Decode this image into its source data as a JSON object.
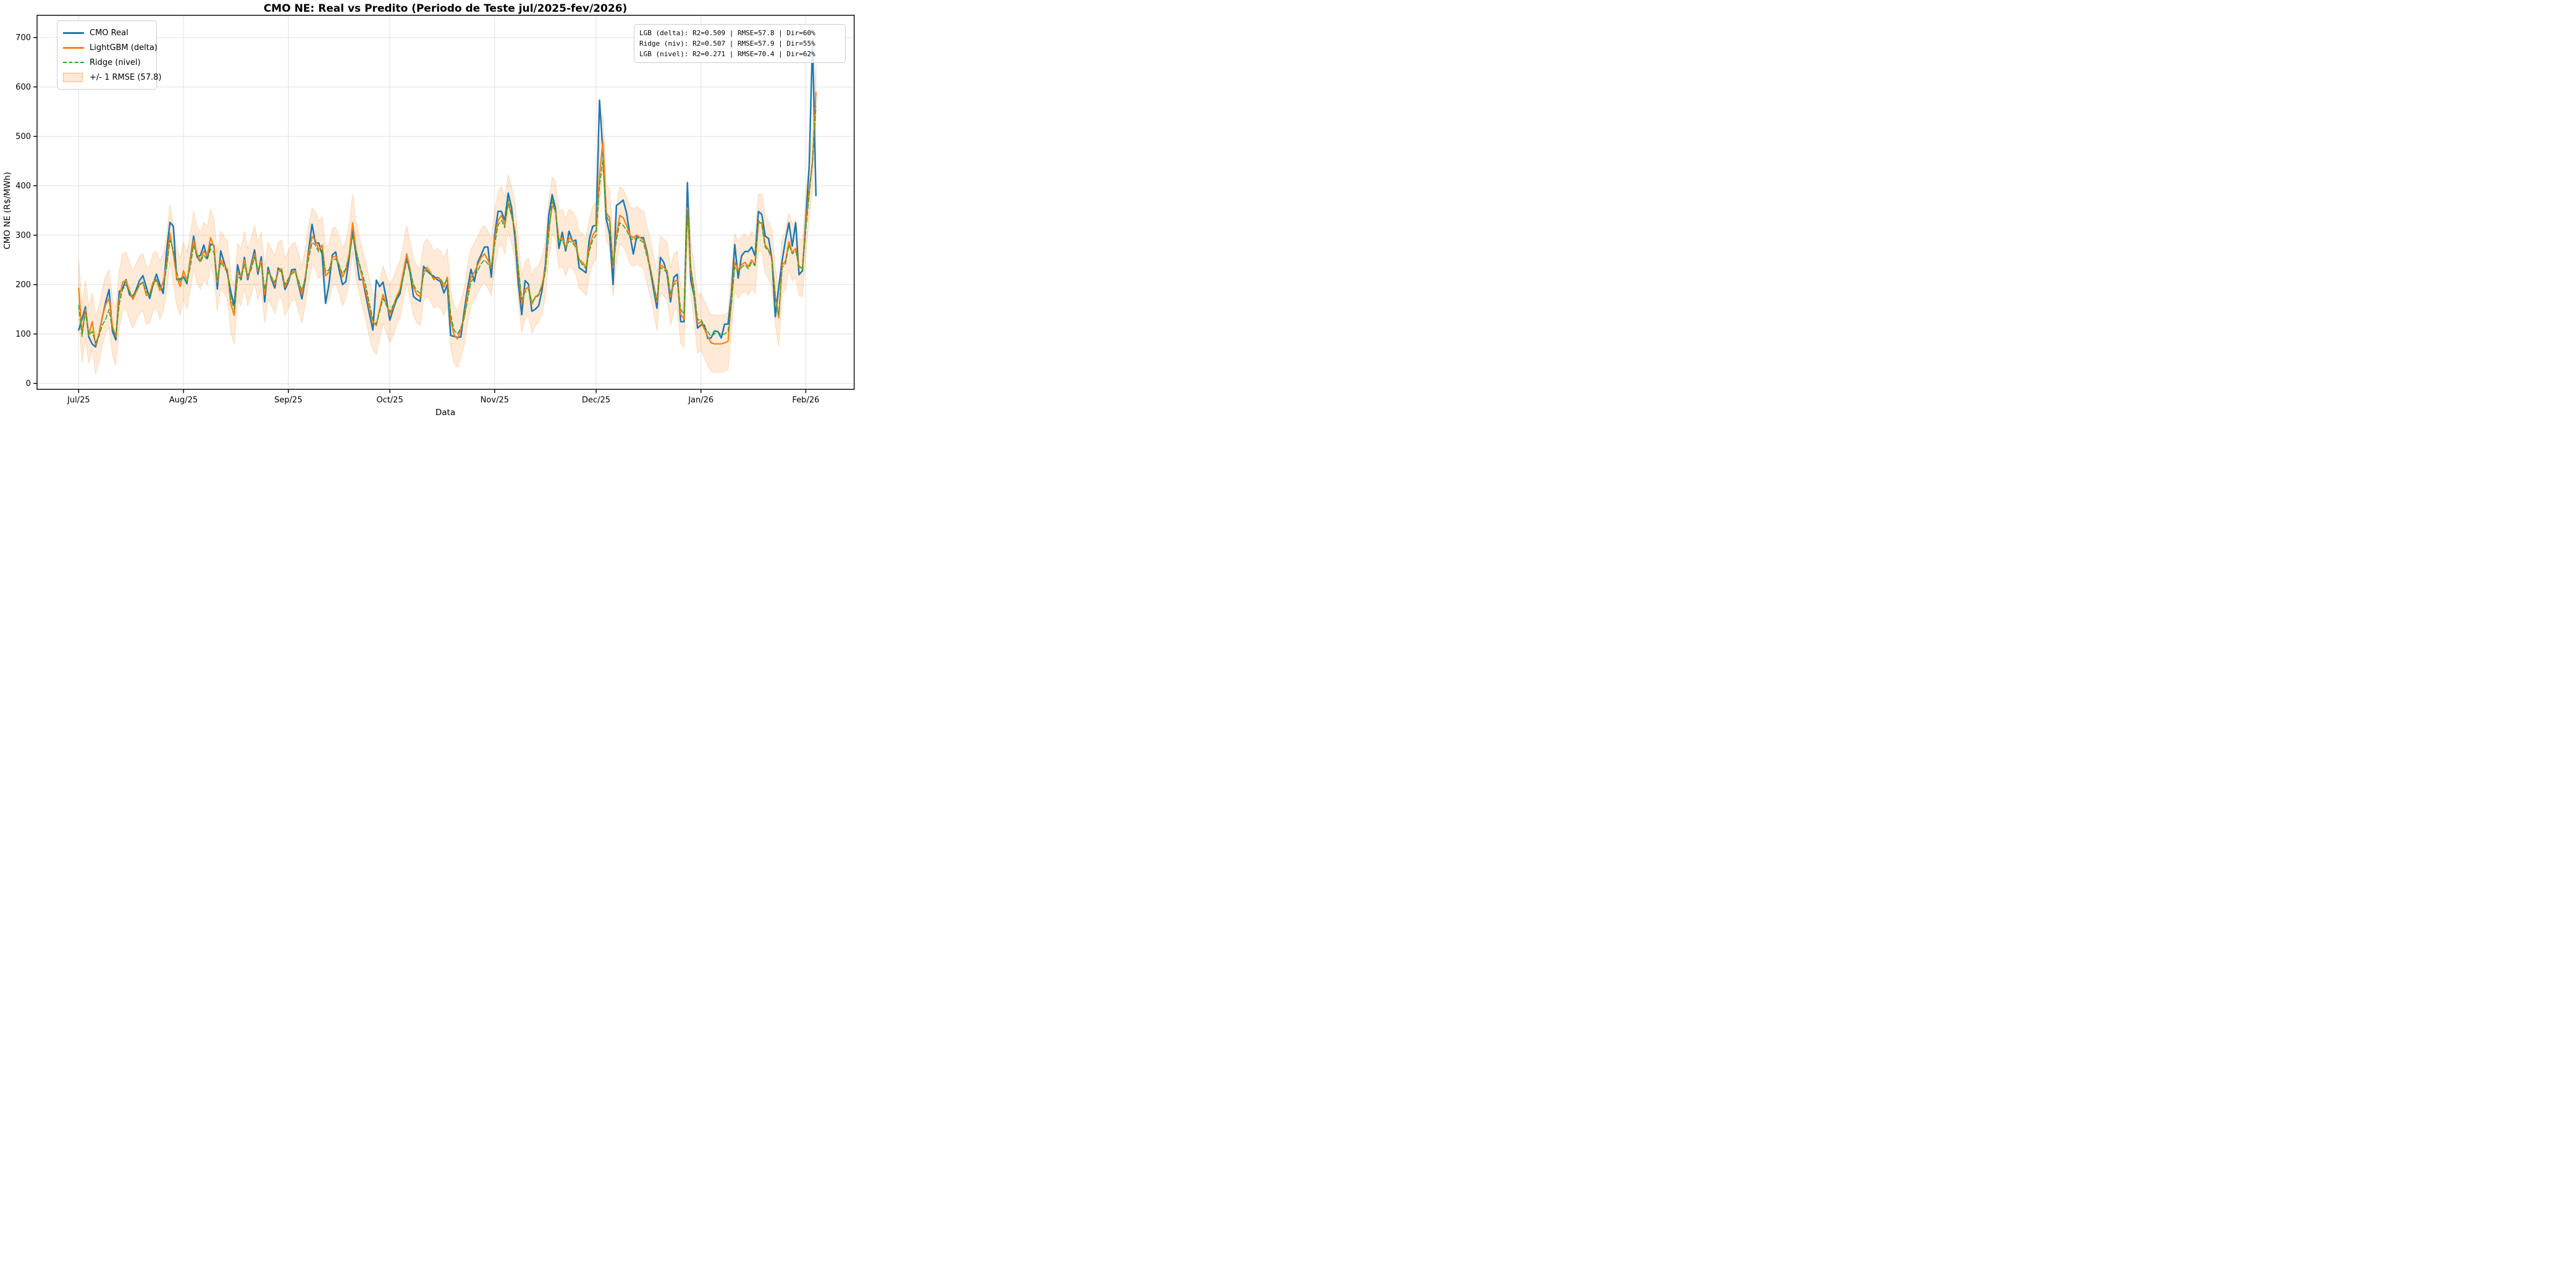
{
  "title": "CMO NE: Real vs Predito (Periodo de Teste jul/2025-fev/2026)",
  "xlabel": "Data",
  "ylabel": "CMO NE (R$/MWh)",
  "legend": {
    "items": [
      {
        "label": "CMO Real",
        "color": "#1f77b4",
        "kind": "line"
      },
      {
        "label": "LightGBM (delta)",
        "color": "#ff7f0e",
        "kind": "line"
      },
      {
        "label": "Ridge (nivel)",
        "color": "#2ca02c",
        "kind": "dashed-line"
      },
      {
        "label": "+/- 1 RMSE (57.8)",
        "color": "#ff7f0e",
        "kind": "band"
      }
    ]
  },
  "stats_box": {
    "lines": [
      "LGB (delta): R2=0.509 | RMSE=57.8 | Dir=60%",
      "Ridge (niv): R2=0.507 | RMSE=57.9 | Dir=55%",
      "LGB (nivel): R2=0.271 | RMSE=70.4 | Dir=62%"
    ]
  },
  "chart_data": {
    "type": "line",
    "title": "CMO NE: Real vs Predito (Periodo de Teste jul/2025-fev/2026)",
    "xlabel": "Data",
    "ylabel": "CMO NE (R$/MWh)",
    "grid": true,
    "legend_position": "upper-left",
    "x_unit": "daily index from 2025-06-30",
    "xlim": [
      -12.3,
      229.3
    ],
    "ylim": [
      -12,
      745
    ],
    "x_ticks": {
      "positions": [
        0,
        31,
        62,
        92,
        123,
        153,
        184,
        215
      ],
      "labels": [
        "Jul/25",
        "Aug/25",
        "Sep/25",
        "Oct/25",
        "Nov/25",
        "Dec/25",
        "Jan/26",
        "Feb/26"
      ]
    },
    "y_ticks": [
      0,
      100,
      200,
      300,
      400,
      500,
      600,
      700
    ],
    "band": {
      "around_series": "LightGBM (delta)",
      "halfwidth": 57.8,
      "color": "#ff7f0e",
      "opacity": 0.16
    },
    "series": [
      {
        "name": "CMO Real",
        "color": "#1f77b4",
        "style": "solid",
        "width": 2.5,
        "values": [
          108,
          130,
          155,
          94,
          80,
          74,
          100,
          134,
          165,
          190,
          105,
          88,
          186,
          192,
          210,
          180,
          173,
          190,
          208,
          218,
          195,
          172,
          200,
          221,
          200,
          182,
          268,
          326,
          318,
          210,
          211,
          216,
          202,
          250,
          298,
          256,
          259,
          280,
          253,
          282,
          279,
          191,
          268,
          245,
          222,
          185,
          158,
          240,
          210,
          255,
          210,
          240,
          270,
          221,
          256,
          165,
          235,
          211,
          193,
          233,
          228,
          190,
          205,
          230,
          231,
          200,
          171,
          210,
          270,
          322,
          284,
          284,
          261,
          162,
          200,
          260,
          266,
          230,
          200,
          206,
          255,
          312,
          260,
          210,
          210,
          175,
          140,
          108,
          209,
          196,
          205,
          170,
          128,
          150,
          170,
          181,
          220,
          256,
          224,
          176,
          170,
          166,
          237,
          228,
          221,
          217,
          210,
          206,
          183,
          200,
          97,
          95,
          93,
          94,
          147,
          192,
          231,
          206,
          245,
          260,
          276,
          276,
          215,
          300,
          348,
          348,
          330,
          385,
          356,
          295,
          203,
          139,
          208,
          201,
          146,
          150,
          157,
          188,
          240,
          340,
          382,
          354,
          273,
          306,
          268,
          308,
          288,
          290,
          234,
          229,
          224,
          293,
          318,
          320,
          573,
          470,
          333,
          302,
          200,
          360,
          365,
          371,
          345,
          300,
          262,
          297,
          295,
          295,
          268,
          230,
          190,
          152,
          255,
          245,
          221,
          165,
          215,
          221,
          125,
          125,
          406,
          209,
          177,
          112,
          118,
          118,
          91,
          92,
          106,
          105,
          92,
          120,
          120,
          180,
          281,
          213,
          258,
          267,
          267,
          276,
          258,
          348,
          342,
          298,
          293,
          252,
          135,
          195,
          248,
          290,
          325,
          278,
          325,
          220,
          228,
          330,
          440,
          697,
          380
        ]
      },
      {
        "name": "LightGBM (delta)",
        "color": "#ff7f0e",
        "style": "solid",
        "width": 2.2,
        "values": [
          193,
          101,
          150,
          98,
          125,
          78,
          100,
          135,
          160,
          172,
          115,
          95,
          170,
          205,
          208,
          188,
          170,
          185,
          200,
          205,
          178,
          180,
          205,
          210,
          188,
          205,
          240,
          304,
          262,
          215,
          196,
          228,
          208,
          245,
          290,
          262,
          248,
          268,
          258,
          295,
          275,
          205,
          250,
          240,
          230,
          160,
          138,
          225,
          215,
          250,
          215,
          235,
          262,
          228,
          248,
          180,
          228,
          215,
          200,
          228,
          232,
          195,
          210,
          225,
          228,
          205,
          180,
          215,
          262,
          297,
          290,
          270,
          280,
          218,
          225,
          255,
          258,
          240,
          215,
          230,
          262,
          325,
          270,
          239,
          210,
          185,
          150,
          125,
          117,
          150,
          180,
          160,
          140,
          155,
          175,
          190,
          225,
          262,
          230,
          195,
          180,
          175,
          225,
          235,
          225,
          210,
          215,
          210,
          195,
          215,
          130,
          98,
          90,
          110,
          135,
          180,
          215,
          225,
          240,
          255,
          262,
          250,
          235,
          290,
          330,
          340,
          320,
          365,
          340,
          310,
          230,
          160,
          190,
          195,
          160,
          175,
          180,
          200,
          230,
          310,
          360,
          350,
          290,
          295,
          275,
          295,
          290,
          280,
          250,
          245,
          235,
          275,
          300,
          310,
          420,
          490,
          345,
          335,
          235,
          300,
          340,
          335,
          320,
          300,
          295,
          300,
          295,
          290,
          262,
          235,
          200,
          165,
          240,
          235,
          228,
          175,
          205,
          210,
          140,
          130,
          355,
          230,
          185,
          120,
          125,
          110,
          95,
          82,
          80,
          80,
          80,
          82,
          85,
          165,
          245,
          230,
          240,
          245,
          236,
          250,
          240,
          325,
          325,
          280,
          270,
          253,
          175,
          133,
          240,
          247,
          287,
          265,
          273,
          236,
          233,
          320,
          390,
          450,
          589
        ]
      },
      {
        "name": "Ridge (nivel)",
        "color": "#2ca02c",
        "style": "dashed",
        "width": 1.6,
        "values": [
          158,
          95,
          145,
          98,
          105,
          82,
          95,
          118,
          130,
          150,
          108,
          98,
          160,
          190,
          200,
          185,
          178,
          188,
          198,
          205,
          185,
          178,
          198,
          210,
          195,
          192,
          235,
          290,
          270,
          225,
          205,
          215,
          205,
          235,
          280,
          255,
          245,
          260,
          250,
          272,
          265,
          210,
          245,
          235,
          225,
          172,
          150,
          215,
          212,
          240,
          218,
          230,
          255,
          230,
          242,
          190,
          225,
          215,
          205,
          225,
          228,
          200,
          212,
          222,
          225,
          208,
          188,
          212,
          252,
          285,
          280,
          265,
          270,
          225,
          230,
          250,
          252,
          238,
          222,
          232,
          255,
          300,
          268,
          242,
          220,
          195,
          160,
          130,
          120,
          145,
          172,
          158,
          145,
          158,
          172,
          185,
          215,
          248,
          228,
          200,
          188,
          182,
          220,
          228,
          222,
          212,
          215,
          212,
          200,
          210,
          140,
          108,
          100,
          112,
          132,
          170,
          205,
          215,
          228,
          242,
          250,
          242,
          230,
          280,
          320,
          330,
          315,
          372,
          340,
          305,
          235,
          170,
          185,
          190,
          165,
          172,
          178,
          195,
          225,
          300,
          372,
          345,
          285,
          290,
          272,
          288,
          285,
          275,
          248,
          240,
          232,
          268,
          290,
          300,
          400,
          452,
          340,
          325,
          240,
          290,
          325,
          320,
          310,
          295,
          290,
          295,
          290,
          285,
          258,
          232,
          198,
          168,
          235,
          230,
          225,
          180,
          200,
          205,
          150,
          140,
          350,
          235,
          190,
          128,
          130,
          115,
          105,
          95,
          100,
          105,
          98,
          100,
          105,
          160,
          235,
          225,
          235,
          240,
          232,
          245,
          238,
          330,
          320,
          275,
          268,
          250,
          172,
          140,
          235,
          242,
          280,
          262,
          268,
          238,
          230,
          310,
          380,
          450,
          560
        ]
      }
    ]
  },
  "colors": {
    "real": "#1f77b4",
    "lgb_delta": "#ff7f0e",
    "ridge_nivel": "#2ca02c",
    "band_fill": "rgba(255,127,14,0.16)",
    "grid": "#e0e0e0",
    "spine": "#000000",
    "box_border": "#cccccc"
  }
}
